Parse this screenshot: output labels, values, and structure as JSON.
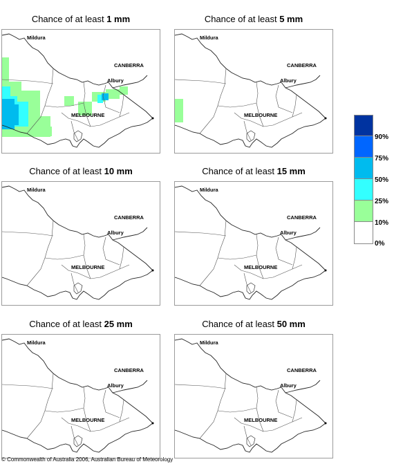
{
  "panels": [
    {
      "prefix": "Chance of at least ",
      "amount": "1 mm"
    },
    {
      "prefix": "Chance of at least ",
      "amount": "5 mm"
    },
    {
      "prefix": "Chance of at least ",
      "amount": "10 mm"
    },
    {
      "prefix": "Chance of at least ",
      "amount": "15 mm"
    },
    {
      "prefix": "Chance of at least ",
      "amount": "25 mm"
    },
    {
      "prefix": "Chance of at least ",
      "amount": "50 mm"
    }
  ],
  "cities": {
    "mildura": "Mildura",
    "canberra": "CANBERRA",
    "albury": "Albury",
    "melbourne": "MELBOURNE"
  },
  "legend": {
    "labels": [
      "90%",
      "75%",
      "50%",
      "25%",
      "10%",
      "0%"
    ],
    "colors": [
      "#0033a0",
      "#0066ff",
      "#00bbee",
      "#33ffff",
      "#99ff99",
      "#ffffff"
    ]
  },
  "copyright": "© Commonwealth of Australia 2006, Australian Bureau of Meteorology"
}
